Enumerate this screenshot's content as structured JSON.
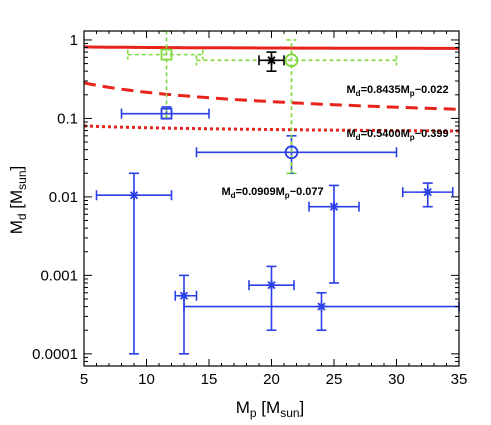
{
  "chart_data": {
    "type": "scatter",
    "title": "",
    "xlabel": {
      "main": "M",
      "sub": "p",
      "unit_open": " [M",
      "unit_sub": "sun",
      "unit_close": "]"
    },
    "ylabel": {
      "main": "M",
      "sub": "d",
      "unit_open": " [M",
      "unit_sub": "sun",
      "unit_close": "]"
    },
    "xlim": [
      5,
      35
    ],
    "ylim": [
      7e-05,
      1.3
    ],
    "yscale": "log",
    "x_ticks": [
      5,
      10,
      15,
      20,
      25,
      30,
      35
    ],
    "x_tick_labels": [
      "5",
      "10",
      "15",
      "20",
      "25",
      "30",
      "35"
    ],
    "y_ticks": [
      0.0001,
      0.001,
      0.01,
      0.1,
      1
    ],
    "y_tick_labels": [
      "0.0001",
      "0.001",
      "0.01",
      "0.1",
      "1"
    ],
    "grid": false,
    "legend": "none",
    "colors": {
      "blue": "#2b3fe8",
      "green": "#7fd93a",
      "black": "#000000",
      "red": "#e8231c"
    },
    "series": [
      {
        "color": "blue",
        "marker": "asterisk",
        "points": [
          {
            "x": 9,
            "y": 0.0105,
            "xerr": [
              6,
              12
            ],
            "yerr": [
              0.0001,
              0.02
            ]
          },
          {
            "x": 13,
            "y": 0.00055,
            "xerr": [
              12.3,
              14
            ],
            "yerr": [
              0.0001,
              0.001
            ]
          },
          {
            "x": 20,
            "y": 0.00075,
            "xerr": [
              18.2,
              21.8
            ],
            "yerr": [
              0.0002,
              0.0013
            ]
          },
          {
            "x": 24,
            "y": 0.0004,
            "xerr": [
              13,
              35
            ],
            "yerr": [
              0.0002,
              0.0006
            ]
          },
          {
            "x": 25,
            "y": 0.0075,
            "xerr": [
              23,
              27
            ],
            "yerr": [
              0.0008,
              0.014
            ]
          },
          {
            "x": 32.5,
            "y": 0.0115,
            "xerr": [
              30.5,
              34.5
            ],
            "yerr": [
              0.0075,
              0.015
            ]
          }
        ]
      },
      {
        "color": "blue",
        "marker": "square",
        "points": [
          {
            "x": 11.6,
            "y": 0.115,
            "xerr": [
              8,
              15
            ],
            "yerr": [
              0.1,
              0.14
            ]
          }
        ]
      },
      {
        "color": "blue",
        "marker": "circle",
        "points": [
          {
            "x": 21.6,
            "y": 0.037,
            "xerr": [
              14,
              30
            ],
            "yerr": [
              0.02,
              0.06
            ]
          }
        ]
      },
      {
        "color": "green",
        "marker": "square",
        "dashed_errorbars": true,
        "points": [
          {
            "x": 11.6,
            "y": 0.65,
            "xerr": [
              8.5,
              14.5
            ],
            "yerr": [
              0.1,
              1.3
            ]
          }
        ]
      },
      {
        "color": "green",
        "marker": "circle",
        "dashed_errorbars": true,
        "points": [
          {
            "x": 21.6,
            "y": 0.55,
            "xerr": [
              14,
              30
            ],
            "yerr": [
              0.02,
              1.0
            ]
          }
        ]
      },
      {
        "color": "black",
        "marker": "asterisk",
        "points": [
          {
            "x": 20,
            "y": 0.55,
            "xerr": [
              19,
              21
            ],
            "yerr": [
              0.4,
              0.7
            ]
          }
        ]
      }
    ],
    "fit_lines": [
      {
        "label": "0.8435",
        "exp": "−0.022",
        "a": 0.8435,
        "b": -0.022,
        "style": "solid",
        "label_x": 26,
        "label_y": 0.21
      },
      {
        "label": "0.5400",
        "exp": "−0.399",
        "a": 0.54,
        "b": -0.399,
        "style": "dashed",
        "label_x": 26,
        "label_y": 0.058
      },
      {
        "label": "0.0909",
        "exp": "−0.077",
        "a": 0.0909,
        "b": -0.077,
        "style": "dotted",
        "label_x": 16,
        "label_y": 0.0105
      }
    ],
    "fit_prefix": {
      "main": "M",
      "sub_d": "d",
      "eq": "=",
      "sub_p": "p",
      "mid": "M"
    }
  }
}
